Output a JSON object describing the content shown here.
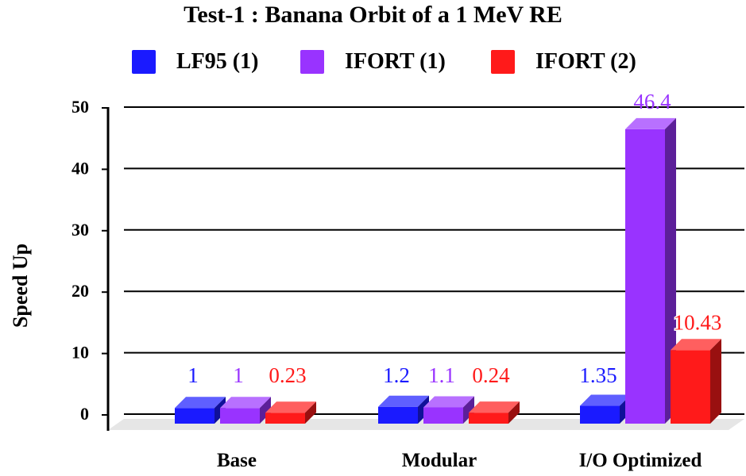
{
  "chart_data": {
    "type": "bar",
    "title": "Test-1 : Banana Orbit of a 1 MeV RE",
    "xlabel": "",
    "ylabel": "Speed Up",
    "ylim": [
      0,
      50
    ],
    "yticks": [
      "0",
      "10",
      "20",
      "30",
      "40",
      "50"
    ],
    "grid": true,
    "legend_position": "top",
    "categories": [
      "Base",
      "Modular",
      "I/O Optimized"
    ],
    "series": [
      {
        "name": "LF95 (1)",
        "color": "#1a1aff",
        "values": [
          1,
          1.2,
          1.35
        ],
        "labels": [
          "1",
          "1.2",
          "1.35"
        ]
      },
      {
        "name": "IFORT (1)",
        "color": "#9933ff",
        "values": [
          1,
          1.1,
          46.4
        ],
        "labels": [
          "1",
          "1.1",
          "46.4"
        ]
      },
      {
        "name": "IFORT (2)",
        "color": "#ff1a1a",
        "values": [
          0.23,
          0.24,
          10.43
        ],
        "labels": [
          "0.23",
          "0.24",
          "10.43"
        ]
      }
    ]
  }
}
